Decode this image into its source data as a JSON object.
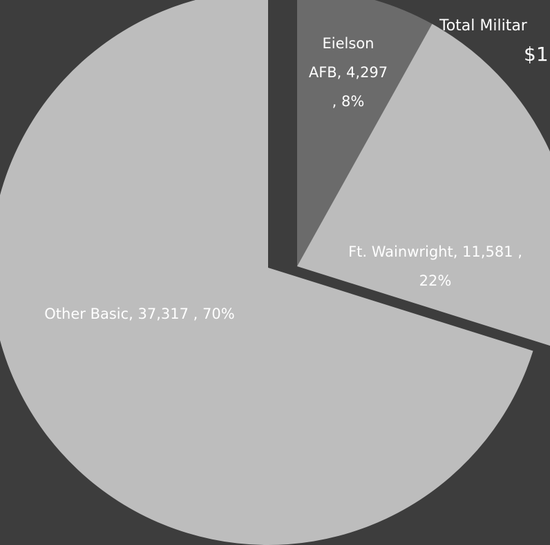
{
  "chart_data": {
    "type": "pie",
    "title": "Total Militar",
    "subtitle": "$1",
    "slices": [
      {
        "name": "Eielson AFB",
        "value": 4297,
        "percent": 8,
        "label_lines": [
          "Eielson",
          "AFB,  4,297",
          ", 8%"
        ],
        "color": "#6b6b6b"
      },
      {
        "name": "Ft. Wainwright",
        "value": 11581,
        "percent": 22,
        "label_lines": [
          "Ft. Wainwright,  11,581 ,",
          "22%"
        ],
        "color": "#bcbcbc"
      },
      {
        "name": "Other Basic",
        "value": 37317,
        "percent": 70,
        "label_lines": [
          "Other Basic,  37,317 , 70%"
        ],
        "color": "#bdbdbd"
      }
    ],
    "background": "#3d3d3d"
  }
}
